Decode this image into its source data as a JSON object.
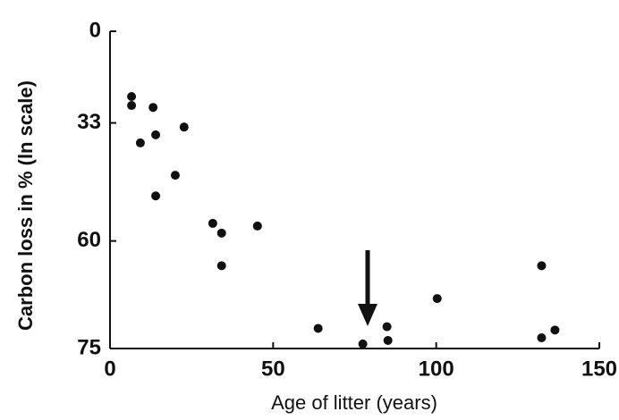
{
  "chart_data": {
    "type": "scatter",
    "xlabel": "Age of litter (years)",
    "ylabel": "Carbon loss in % (ln scale)",
    "x": [
      6.6,
      6.6,
      13.2,
      9.3,
      14,
      22.7,
      20,
      14,
      31.5,
      34.2,
      45.2,
      34.2,
      63.8,
      77.5,
      84.9,
      85.2,
      100.3,
      132.3,
      132.3,
      136.4
    ],
    "values": [
      24.8,
      27.7,
      28.3,
      38.6,
      36.4,
      34.2,
      46.7,
      51.3,
      56.8,
      58.6,
      57.3,
      64.1,
      72.7,
      74.5,
      72.5,
      74.1,
      68.9,
      64.1,
      73.8,
      72.9
    ],
    "color": "#111111",
    "xlim": [
      0,
      150
    ],
    "xticks": [
      0,
      50,
      100,
      150
    ],
    "ylim": [
      0,
      75
    ],
    "yticks": [
      0,
      33,
      60,
      75
    ],
    "yscale": "ln(100 - y)",
    "y_inverted": true
  }
}
